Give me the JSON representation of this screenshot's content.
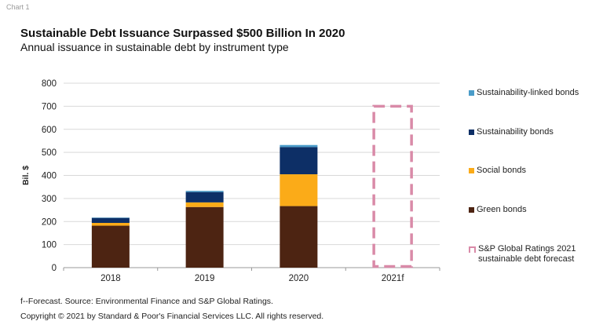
{
  "header": {
    "chart_label": "Chart 1",
    "title": "Sustainable Debt Issuance Surpassed $500 Billion In 2020",
    "subtitle": "Annual issuance in sustainable debt by instrument type"
  },
  "footer": {
    "note": "f--Forecast. Source: Environmental Finance and S&P Global Ratings.",
    "copyright": "Copyright © 2021 by Standard & Poor's Financial Services LLC. All rights reserved."
  },
  "chart_data": {
    "type": "bar",
    "stacked": true,
    "title": "Sustainable Debt Issuance Surpassed $500 Billion In 2020",
    "subtitle": "Annual issuance in sustainable debt by instrument type",
    "xlabel": "",
    "ylabel": "Bil. $",
    "ylim": [
      0,
      800
    ],
    "yticks": [
      0,
      100,
      200,
      300,
      400,
      500,
      600,
      700,
      800
    ],
    "ytick_labels": [
      "0",
      "100",
      "200",
      "300",
      "400",
      "500",
      "600",
      "700",
      "800"
    ],
    "categories": [
      "2018",
      "2019",
      "2020",
      "2021f"
    ],
    "grid": true,
    "legend_position": "right",
    "series": [
      {
        "name": "Green bonds",
        "color": "#4d2412",
        "values": [
          182,
          263,
          267,
          null
        ]
      },
      {
        "name": "Social bonds",
        "color": "#fbab18",
        "values": [
          12,
          20,
          138,
          null
        ]
      },
      {
        "name": "Sustainability bonds",
        "color": "#0d2f66",
        "values": [
          22,
          45,
          118,
          null
        ]
      },
      {
        "name": "Sustainability-linked bonds",
        "color": "#4a9cc9",
        "values": [
          1,
          5,
          9,
          null
        ]
      }
    ],
    "forecast": {
      "name": "S&P Global Ratings 2021 sustainable debt forecast",
      "category": "2021f",
      "value": 700,
      "style": "dashed-outline",
      "color": "#d98aa8"
    },
    "legend": [
      {
        "label": "Sustainability-linked bonds",
        "color": "#4a9cc9",
        "style": "solid"
      },
      {
        "label": "Sustainability bonds",
        "color": "#0d2f66",
        "style": "solid"
      },
      {
        "label": "Social bonds",
        "color": "#fbab18",
        "style": "solid"
      },
      {
        "label": "Green bonds",
        "color": "#4d2412",
        "style": "solid"
      },
      {
        "label": "S&P Global Ratings 2021 sustainable debt forecast",
        "color": "#d98aa8",
        "style": "dashed"
      }
    ]
  }
}
